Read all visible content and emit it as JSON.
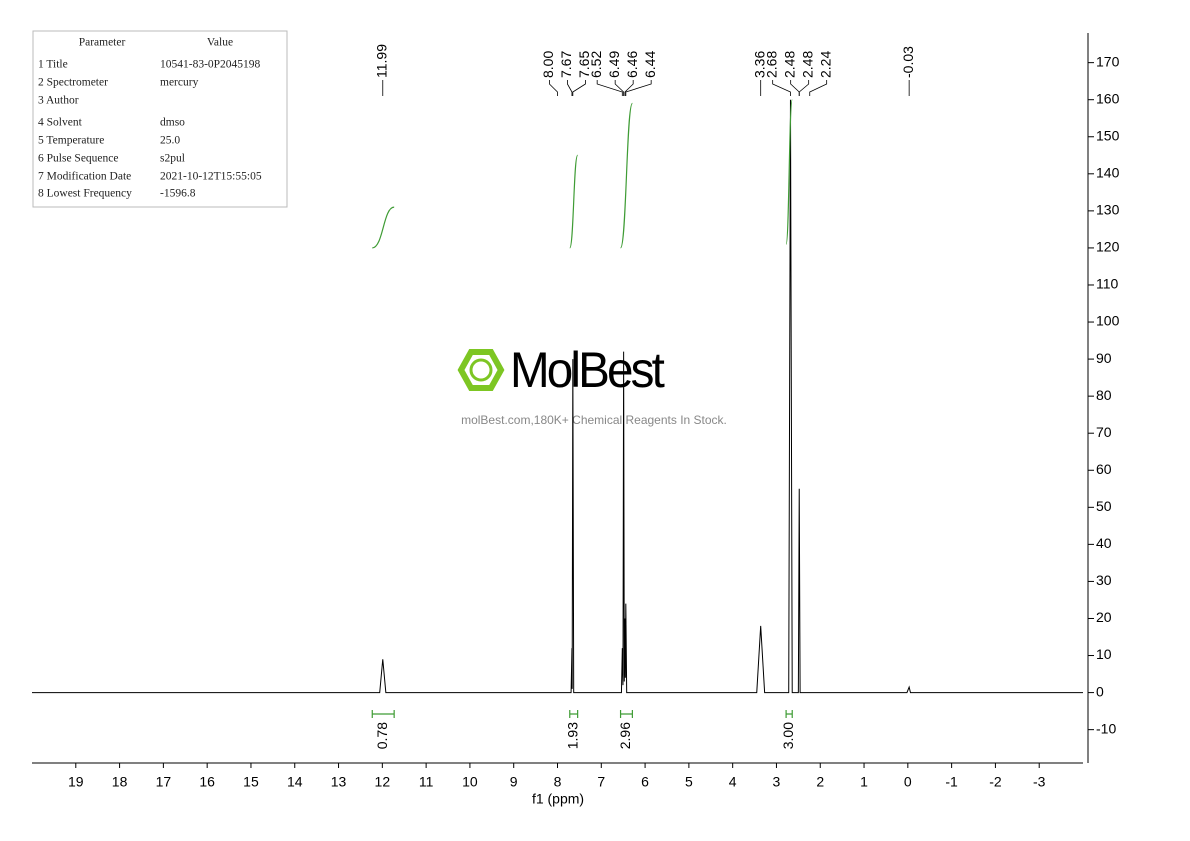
{
  "chart_data": {
    "type": "line",
    "x_label": "f1 (ppm)",
    "xlim": [
      20,
      -4
    ],
    "xticks": [
      19,
      18,
      17,
      16,
      15,
      14,
      13,
      12,
      11,
      10,
      9,
      8,
      7,
      6,
      5,
      4,
      3,
      2,
      1,
      0,
      -1,
      -2,
      -3
    ],
    "ylim": [
      -19,
      178
    ],
    "yticks": [
      -10,
      0,
      10,
      20,
      30,
      40,
      50,
      60,
      70,
      80,
      90,
      100,
      110,
      120,
      130,
      140,
      150,
      160,
      170
    ],
    "color": "#000000",
    "x": [
      20,
      12.06,
      11.99,
      11.92,
      7.69,
      7.67,
      7.665,
      7.65,
      7.63,
      6.54,
      6.52,
      6.505,
      6.49,
      6.475,
      6.46,
      6.45,
      6.44,
      6.42,
      3.45,
      3.36,
      3.27,
      2.72,
      2.68,
      2.64,
      2.5,
      2.48,
      2.46,
      0.02,
      -0.03,
      -0.06,
      -4
    ],
    "values": [
      0,
      0,
      9,
      0,
      0,
      12,
      1,
      90,
      0,
      0,
      12,
      2,
      92,
      3,
      20,
      4,
      24,
      0,
      0,
      18,
      0,
      0,
      160,
      0,
      0,
      55,
      0,
      0,
      1.5,
      0,
      0
    ],
    "peak_labels": [
      {
        "value": 11.99,
        "label": "11.99"
      },
      {
        "value": 8,
        "label": "8.00"
      },
      {
        "value": 7.67,
        "label": "7.67"
      },
      {
        "value": 7.65,
        "label": "7.65"
      },
      {
        "value": 6.52,
        "label": "6.52"
      },
      {
        "value": 6.49,
        "label": "6.49"
      },
      {
        "value": 6.46,
        "label": "6.46"
      },
      {
        "value": 6.44,
        "label": "6.44"
      },
      {
        "value": 3.36,
        "label": "3.36"
      },
      {
        "value": 2.68,
        "label": "2.68"
      },
      {
        "value": 2.48,
        "label": "2.48"
      },
      {
        "value": 2.48,
        "label": "2.48"
      },
      {
        "value": 2.24,
        "label": "2.24"
      },
      {
        "value": -0.03,
        "label": "-0.03"
      }
    ],
    "integral_color": "#3f9c35",
    "integrals": [
      {
        "from": 12.23,
        "to": 11.73,
        "low": 120,
        "high": 131,
        "label": "0.78"
      },
      {
        "from": 7.72,
        "to": 7.54,
        "low": 120,
        "high": 145,
        "label": "1.93"
      },
      {
        "from": 6.56,
        "to": 6.29,
        "low": 120,
        "high": 159,
        "label": "2.96"
      },
      {
        "from": 2.78,
        "to": 2.64,
        "low": 121,
        "high": 160,
        "label": "3.00"
      }
    ]
  },
  "parameters": {
    "headers": [
      "Parameter",
      "Value"
    ],
    "rows": [
      [
        "1 Title",
        "10541-83-0P2045198"
      ],
      [
        "2 Spectrometer",
        "mercury"
      ],
      [
        "3 Author"
      ],
      [
        "4 Solvent",
        "dmso"
      ],
      [
        "5 Temperature",
        "25.0"
      ],
      [
        "6 Pulse Sequence",
        "s2pul"
      ],
      [
        "7 Modification Date",
        "2021-10-12T15:55:05"
      ],
      [
        "8 Lowest Frequency",
        "-1596.8"
      ]
    ]
  },
  "watermark": {
    "brand": "MolBest",
    "tagline": "molBest.com,180K+ Chemical Reagents In Stock."
  }
}
